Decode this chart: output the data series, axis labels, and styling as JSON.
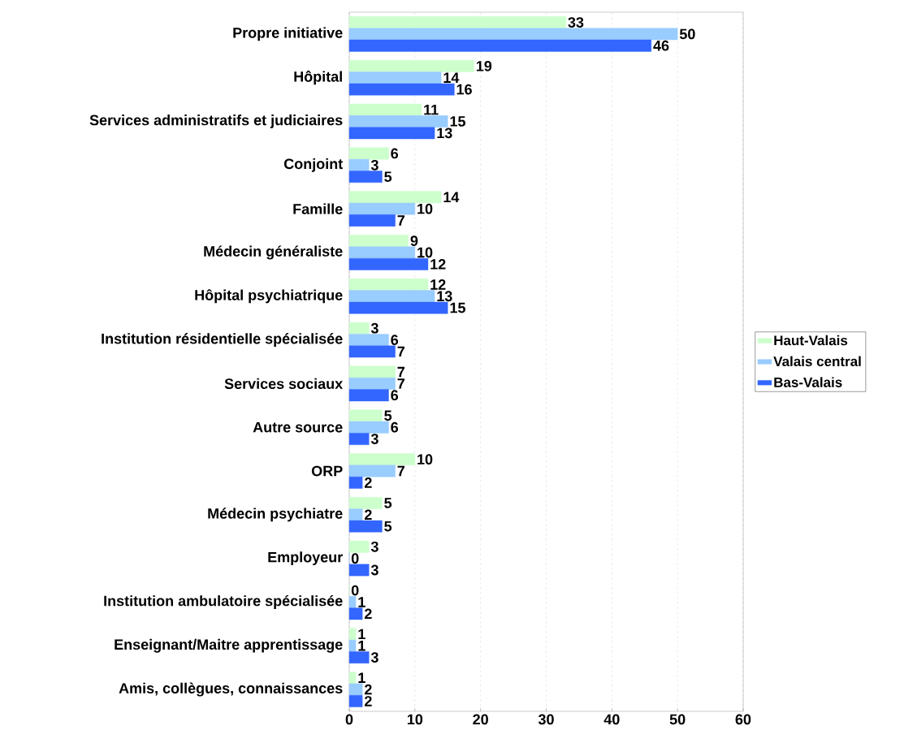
{
  "chart_data": {
    "type": "bar",
    "orientation": "horizontal",
    "categories": [
      "Propre initiative",
      "Hôpital",
      "Services administratifs et judiciaires",
      "Conjoint",
      "Famille",
      "Médecin généraliste",
      "Hôpital psychiatrique",
      "Institution résidentielle spécialisée",
      "Services sociaux",
      "Autre source",
      "ORP",
      "Médecin psychiatre",
      "Employeur",
      "Institution ambulatoire spécialisée",
      "Enseignant/Maitre apprentissage",
      "Amis, collègues, connaissances"
    ],
    "series": [
      {
        "name": "Haut-Valais",
        "color": "#ccffcc",
        "values": [
          33,
          19,
          11,
          6,
          14,
          9,
          12,
          3,
          7,
          5,
          10,
          5,
          3,
          0,
          1,
          1
        ]
      },
      {
        "name": "Valais central",
        "color": "#99ccff",
        "values": [
          50,
          14,
          15,
          3,
          10,
          10,
          13,
          6,
          7,
          6,
          7,
          2,
          0,
          1,
          1,
          2
        ]
      },
      {
        "name": "Bas-Valais",
        "color": "#3366ff",
        "values": [
          46,
          16,
          13,
          5,
          7,
          12,
          15,
          7,
          6,
          3,
          2,
          5,
          3,
          2,
          3,
          2
        ]
      }
    ],
    "xlim": [
      0,
      60
    ],
    "xticks": [
      0,
      10,
      20,
      30,
      40,
      50,
      60
    ],
    "grid": "x",
    "legend": "right",
    "data_labels": true
  }
}
